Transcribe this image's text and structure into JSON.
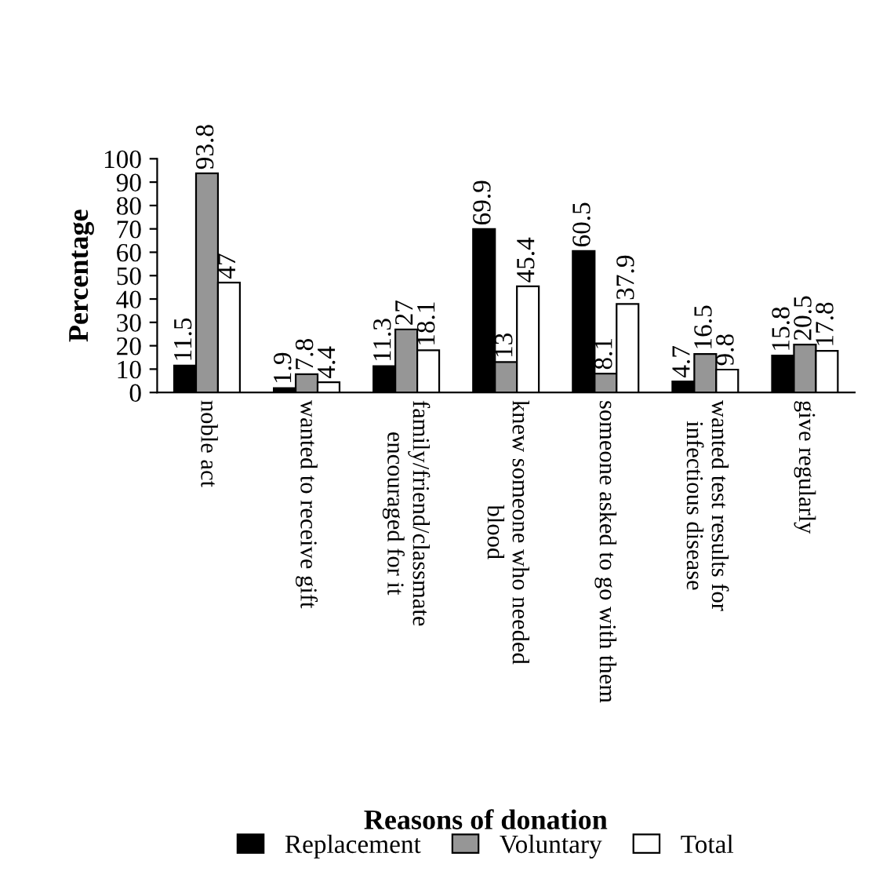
{
  "chart_data": {
    "type": "bar",
    "xlabel": "Reasons of donation",
    "ylabel": "Percentage",
    "categories": [
      "noble act",
      "wanted to receive gift",
      "family/friend/classmate\nencouraged for it",
      "knew someone who needed\nblood",
      "someone asked to go with them",
      "wanted test results for\ninfectious disease",
      "give regularly"
    ],
    "series": [
      {
        "name": "Replacement",
        "color": "#000000",
        "values": [
          11.5,
          1.9,
          11.3,
          69.9,
          60.5,
          4.7,
          15.8
        ]
      },
      {
        "name": "Voluntary",
        "color": "#969696",
        "values": [
          93.8,
          7.8,
          27,
          13,
          8.1,
          16.5,
          20.5
        ]
      },
      {
        "name": "Total",
        "color": "#ffffff",
        "values": [
          47,
          4.4,
          18.1,
          45.4,
          37.9,
          9.8,
          17.8
        ]
      }
    ],
    "ylim": [
      0,
      100
    ],
    "yticks": [
      0,
      10,
      20,
      30,
      40,
      50,
      60,
      70,
      80,
      90,
      100
    ],
    "data_labels": true,
    "grid": false,
    "legend": "bottom"
  }
}
